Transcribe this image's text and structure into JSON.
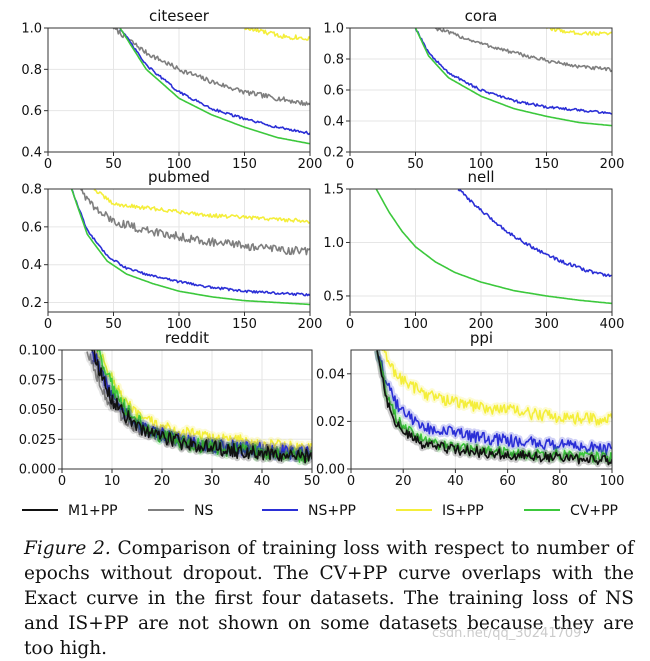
{
  "colors": {
    "M1+PP": "#111111",
    "NS": "#7f7f7f",
    "NS+PP": "#2b2fd6",
    "IS+PP": "#f4ee3a",
    "CV+PP": "#3cc83c"
  },
  "legend": [
    "M1+PP",
    "NS",
    "NS+PP",
    "IS+PP",
    "CV+PP"
  ],
  "chart_data": [
    {
      "type": "line",
      "title": "citeseer",
      "xlim": [
        0,
        200
      ],
      "ylim": [
        0.4,
        1.0
      ],
      "xticks": [
        0,
        50,
        100,
        150,
        200
      ],
      "yticks": [
        0.4,
        0.6,
        0.8,
        1.0
      ],
      "xtick_labels": [
        "0",
        "50",
        "100",
        "150",
        "200"
      ],
      "ytick_labels": [
        "0.4",
        "0.6",
        "0.8",
        "1.0"
      ],
      "series": [
        {
          "name": "NS",
          "x": [
            50,
            75,
            100,
            125,
            150,
            175,
            200
          ],
          "y": [
            1.0,
            0.88,
            0.8,
            0.74,
            0.69,
            0.66,
            0.63
          ],
          "noise": 0.012
        },
        {
          "name": "NS+PP",
          "x": [
            55,
            75,
            100,
            125,
            150,
            175,
            200
          ],
          "y": [
            1.0,
            0.82,
            0.69,
            0.61,
            0.56,
            0.52,
            0.49
          ],
          "noise": 0.006
        },
        {
          "name": "IS+PP",
          "x": [
            150,
            165,
            180,
            200
          ],
          "y": [
            1.0,
            0.98,
            0.96,
            0.95
          ],
          "noise": 0.012
        },
        {
          "name": "CV+PP",
          "x": [
            55,
            75,
            100,
            125,
            150,
            175,
            200
          ],
          "y": [
            1.0,
            0.8,
            0.66,
            0.58,
            0.52,
            0.47,
            0.44
          ],
          "noise": 0
        }
      ]
    },
    {
      "type": "line",
      "title": "cora",
      "xlim": [
        0,
        200
      ],
      "ylim": [
        0.2,
        1.0
      ],
      "xticks": [
        0,
        50,
        100,
        150,
        200
      ],
      "yticks": [
        0.2,
        0.4,
        0.6,
        0.8,
        1.0
      ],
      "xtick_labels": [
        "0",
        "50",
        "100",
        "150",
        "200"
      ],
      "ytick_labels": [
        "0.2",
        "0.4",
        "0.6",
        "0.8",
        "1.0"
      ],
      "series": [
        {
          "name": "NS",
          "x": [
            65,
            100,
            125,
            150,
            175,
            200
          ],
          "y": [
            1.0,
            0.9,
            0.84,
            0.79,
            0.75,
            0.73
          ],
          "noise": 0.012
        },
        {
          "name": "IS+PP",
          "x": [
            150,
            170,
            200
          ],
          "y": [
            1.0,
            0.97,
            0.96
          ],
          "noise": 0.012
        },
        {
          "name": "NS+PP",
          "x": [
            50,
            60,
            75,
            100,
            125,
            150,
            175,
            200
          ],
          "y": [
            1.0,
            0.84,
            0.71,
            0.6,
            0.53,
            0.49,
            0.47,
            0.45
          ],
          "noise": 0.008
        },
        {
          "name": "CV+PP",
          "x": [
            50,
            60,
            75,
            100,
            125,
            150,
            175,
            200
          ],
          "y": [
            1.0,
            0.82,
            0.68,
            0.56,
            0.48,
            0.43,
            0.39,
            0.37
          ],
          "noise": 0
        }
      ]
    },
    {
      "type": "line",
      "title": "pubmed",
      "xlim": [
        0,
        200
      ],
      "ylim": [
        0.15,
        0.8
      ],
      "xticks": [
        0,
        50,
        100,
        150,
        200
      ],
      "yticks": [
        0.2,
        0.4,
        0.6,
        0.8
      ],
      "xtick_labels": [
        "0",
        "50",
        "100",
        "150",
        "200"
      ],
      "ytick_labels": [
        "0.2",
        "0.4",
        "0.6",
        "0.8"
      ],
      "series": [
        {
          "name": "IS+PP",
          "x": [
            35,
            50,
            75,
            100,
            125,
            150,
            175,
            200
          ],
          "y": [
            0.8,
            0.72,
            0.7,
            0.68,
            0.66,
            0.65,
            0.64,
            0.63
          ],
          "noise": 0.01
        },
        {
          "name": "NS",
          "x": [
            25,
            35,
            50,
            75,
            100,
            125,
            150,
            175,
            200
          ],
          "y": [
            0.8,
            0.7,
            0.63,
            0.58,
            0.55,
            0.52,
            0.5,
            0.48,
            0.47
          ],
          "noise": 0.022
        },
        {
          "name": "NS+PP",
          "x": [
            18,
            30,
            45,
            60,
            80,
            100,
            125,
            150,
            175,
            200
          ],
          "y": [
            0.8,
            0.58,
            0.45,
            0.38,
            0.34,
            0.31,
            0.28,
            0.26,
            0.25,
            0.24
          ],
          "noise": 0.006
        },
        {
          "name": "CV+PP",
          "x": [
            18,
            30,
            45,
            60,
            80,
            100,
            125,
            150,
            175,
            200
          ],
          "y": [
            0.8,
            0.56,
            0.42,
            0.35,
            0.3,
            0.26,
            0.23,
            0.21,
            0.2,
            0.19
          ],
          "noise": 0
        }
      ]
    },
    {
      "type": "line",
      "title": "nell",
      "xlim": [
        0,
        400
      ],
      "ylim": [
        0.35,
        1.5
      ],
      "xticks": [
        0,
        100,
        200,
        300,
        400
      ],
      "yticks": [
        0.5,
        1.0,
        1.5
      ],
      "xtick_labels": [
        "0",
        "100",
        "200",
        "300",
        "400"
      ],
      "ytick_labels": [
        "0.5",
        "1.0",
        "1.5"
      ],
      "series": [
        {
          "name": "NS+PP",
          "x": [
            165,
            200,
            240,
            280,
            320,
            360,
            400
          ],
          "y": [
            1.5,
            1.3,
            1.1,
            0.95,
            0.83,
            0.74,
            0.68
          ],
          "noise": 0.015
        },
        {
          "name": "CV+PP",
          "x": [
            40,
            60,
            80,
            100,
            130,
            160,
            200,
            250,
            300,
            350,
            400
          ],
          "y": [
            1.5,
            1.28,
            1.1,
            0.96,
            0.82,
            0.72,
            0.63,
            0.55,
            0.5,
            0.46,
            0.43
          ],
          "noise": 0
        }
      ]
    },
    {
      "type": "line",
      "title": "reddit",
      "xlim": [
        0,
        50
      ],
      "ylim": [
        0,
        0.1
      ],
      "xticks": [
        0,
        10,
        20,
        30,
        40,
        50
      ],
      "yticks": [
        0.0,
        0.025,
        0.05,
        0.075,
        0.1
      ],
      "xtick_labels": [
        "0",
        "10",
        "20",
        "30",
        "40",
        "50"
      ],
      "ytick_labels": [
        "0.000",
        "0.025",
        "0.050",
        "0.075",
        "0.100"
      ],
      "series": [
        {
          "name": "IS+PP",
          "x": [
            7,
            9,
            12,
            15,
            20,
            25,
            30,
            35,
            40,
            45,
            50
          ],
          "y": [
            0.1,
            0.085,
            0.06,
            0.045,
            0.035,
            0.03,
            0.026,
            0.024,
            0.021,
            0.019,
            0.017
          ],
          "noise": 0.005
        },
        {
          "name": "NS",
          "x": [
            5,
            7,
            9,
            12,
            15,
            20,
            25,
            30,
            35,
            40,
            45,
            50
          ],
          "y": [
            0.1,
            0.08,
            0.058,
            0.045,
            0.035,
            0.027,
            0.022,
            0.019,
            0.017,
            0.015,
            0.014,
            0.013
          ],
          "noise": 0.006
        },
        {
          "name": "NS+PP",
          "x": [
            6,
            8,
            10,
            13,
            16,
            20,
            25,
            30,
            35,
            40,
            45,
            50
          ],
          "y": [
            0.1,
            0.08,
            0.062,
            0.047,
            0.036,
            0.029,
            0.024,
            0.02,
            0.018,
            0.016,
            0.014,
            0.013
          ],
          "noise": 0.006
        },
        {
          "name": "CV+PP",
          "x": [
            7,
            9,
            11,
            14,
            17,
            20,
            25,
            30,
            35,
            40,
            45,
            50
          ],
          "y": [
            0.1,
            0.08,
            0.06,
            0.045,
            0.034,
            0.027,
            0.022,
            0.018,
            0.016,
            0.014,
            0.012,
            0.011
          ],
          "noise": 0.006
        },
        {
          "name": "M1+PP",
          "x": [
            6,
            8,
            10,
            13,
            16,
            20,
            25,
            30,
            35,
            40,
            45,
            50
          ],
          "y": [
            0.1,
            0.078,
            0.058,
            0.044,
            0.034,
            0.026,
            0.021,
            0.018,
            0.015,
            0.013,
            0.012,
            0.011
          ],
          "noise": 0.006
        }
      ]
    },
    {
      "type": "line",
      "title": "ppi",
      "xlim": [
        0,
        100
      ],
      "ylim": [
        0,
        0.05
      ],
      "xticks": [
        0,
        20,
        40,
        60,
        80,
        100
      ],
      "yticks": [
        0.0,
        0.02,
        0.04
      ],
      "xtick_labels": [
        "0",
        "20",
        "40",
        "60",
        "80",
        "100"
      ],
      "ytick_labels": [
        "0.00",
        "0.02",
        "0.04"
      ],
      "series": [
        {
          "name": "IS+PP",
          "x": [
            12,
            16,
            20,
            25,
            30,
            40,
            50,
            60,
            70,
            80,
            90,
            100
          ],
          "y": [
            0.05,
            0.042,
            0.037,
            0.034,
            0.031,
            0.028,
            0.026,
            0.025,
            0.023,
            0.022,
            0.021,
            0.021
          ],
          "noise": 0.0025
        },
        {
          "name": "NS+PP",
          "x": [
            10,
            14,
            18,
            22,
            26,
            30,
            40,
            50,
            60,
            70,
            80,
            90,
            100
          ],
          "y": [
            0.05,
            0.035,
            0.026,
            0.022,
            0.019,
            0.017,
            0.015,
            0.013,
            0.012,
            0.011,
            0.01,
            0.009,
            0.008
          ],
          "noise": 0.0025
        },
        {
          "name": "CV+PP",
          "x": [
            10,
            14,
            18,
            22,
            26,
            30,
            40,
            50,
            60,
            70,
            80,
            90,
            100
          ],
          "y": [
            0.05,
            0.03,
            0.02,
            0.016,
            0.013,
            0.011,
            0.009,
            0.008,
            0.007,
            0.006,
            0.006,
            0.005,
            0.005
          ],
          "noise": 0.0022
        },
        {
          "name": "M1+PP",
          "x": [
            10,
            14,
            18,
            22,
            26,
            30,
            40,
            50,
            60,
            70,
            80,
            90,
            100
          ],
          "y": [
            0.05,
            0.028,
            0.018,
            0.014,
            0.011,
            0.01,
            0.008,
            0.007,
            0.006,
            0.005,
            0.005,
            0.004,
            0.004
          ],
          "noise": 0.0022
        }
      ]
    }
  ],
  "caption": {
    "label": "Figure 2.",
    "lines": [
      "Comparison of training loss with respect to number of",
      "epochs without dropout. The CV+PP curve overlaps with the Exact",
      "curve in the first four datasets. The training loss of NS and IS+PP",
      "are not shown on some datasets because they are too high."
    ]
  },
  "watermark": "csdn.net/qq_30241709"
}
